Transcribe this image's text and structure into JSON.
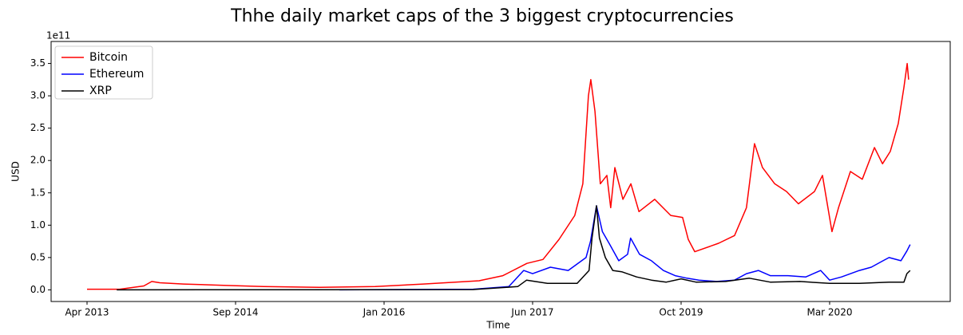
{
  "chart_data": {
    "type": "line",
    "title": "Thhe daily market caps of the 3 biggest cryptocurrencies",
    "x_label": "Time",
    "y_label": "USD",
    "y_offset_label": "1e11",
    "legend": "upper left",
    "xlim": [
      -121,
      2906
    ],
    "ylim": [
      -0.18,
      3.84
    ],
    "xticks": [
      {
        "value": 0,
        "label": "Apr 2013"
      },
      {
        "value": 500,
        "label": "Sep 2014"
      },
      {
        "value": 1000,
        "label": "Jan 2016"
      },
      {
        "value": 1500,
        "label": "Jun 2017"
      },
      {
        "value": 2000,
        "label": "Oct 2019"
      },
      {
        "value": 2500,
        "label": "Mar 2020"
      }
    ],
    "yticks": [
      {
        "value": 0,
        "label": "0.0"
      },
      {
        "value": 0.5,
        "label": "0.5"
      },
      {
        "value": 1,
        "label": "1.0"
      },
      {
        "value": 1.5,
        "label": "1.5"
      },
      {
        "value": 2,
        "label": "2.0"
      },
      {
        "value": 2.5,
        "label": "2.5"
      },
      {
        "value": 3,
        "label": "3.0"
      },
      {
        "value": 3.5,
        "label": "3.5"
      }
    ],
    "series": [
      {
        "name": "Bitcoin",
        "color": "#ff0000",
        "x": [
          0,
          110,
          191,
          218,
          245,
          325,
          460,
          594,
          782,
          970,
          1132,
          1320,
          1400,
          1481,
          1535,
          1589,
          1642,
          1669,
          1688,
          1696,
          1710,
          1728,
          1750,
          1763,
          1777,
          1804,
          1831,
          1858,
          1911,
          1965,
          2005,
          2024,
          2046,
          2126,
          2180,
          2220,
          2247,
          2274,
          2315,
          2355,
          2395,
          2449,
          2476,
          2508,
          2530,
          2570,
          2610,
          2651,
          2678,
          2704,
          2731,
          2750,
          2761,
          2766
        ],
        "values": [
          0.01,
          0.01,
          0.06,
          0.13,
          0.11,
          0.09,
          0.07,
          0.05,
          0.04,
          0.05,
          0.09,
          0.14,
          0.22,
          0.41,
          0.47,
          0.78,
          1.15,
          1.64,
          3.0,
          3.25,
          2.76,
          1.64,
          1.77,
          1.27,
          1.89,
          1.4,
          1.64,
          1.21,
          1.4,
          1.15,
          1.12,
          0.78,
          0.59,
          0.72,
          0.84,
          1.27,
          2.26,
          1.89,
          1.64,
          1.52,
          1.33,
          1.52,
          1.77,
          0.9,
          1.27,
          1.83,
          1.71,
          2.2,
          1.95,
          2.14,
          2.57,
          3.13,
          3.5,
          3.25
        ]
      },
      {
        "name": "Ethereum",
        "color": "#0000ff",
        "x": [
          850,
          1300,
          1420,
          1470,
          1500,
          1560,
          1620,
          1680,
          1695,
          1715,
          1735,
          1760,
          1790,
          1820,
          1830,
          1860,
          1900,
          1940,
          1980,
          2020,
          2060,
          2120,
          2180,
          2220,
          2260,
          2300,
          2360,
          2420,
          2470,
          2500,
          2540,
          2600,
          2640,
          2680,
          2700,
          2740,
          2760,
          2771
        ],
        "values": [
          0,
          0.01,
          0.05,
          0.3,
          0.25,
          0.35,
          0.3,
          0.5,
          0.75,
          1.3,
          0.9,
          0.7,
          0.45,
          0.55,
          0.8,
          0.55,
          0.45,
          0.3,
          0.22,
          0.18,
          0.15,
          0.13,
          0.15,
          0.25,
          0.3,
          0.22,
          0.22,
          0.2,
          0.3,
          0.15,
          0.2,
          0.3,
          0.35,
          0.45,
          0.5,
          0.45,
          0.6,
          0.7
        ]
      },
      {
        "name": "XRP",
        "color": "#000000",
        "x": [
          100,
          1300,
          1450,
          1480,
          1550,
          1650,
          1690,
          1700,
          1715,
          1725,
          1745,
          1770,
          1800,
          1850,
          1900,
          1950,
          2000,
          2050,
          2150,
          2230,
          2300,
          2400,
          2500,
          2600,
          2700,
          2750,
          2760,
          2771
        ],
        "values": [
          0,
          0.005,
          0.05,
          0.15,
          0.1,
          0.1,
          0.3,
          0.8,
          1.3,
          0.8,
          0.5,
          0.3,
          0.28,
          0.2,
          0.15,
          0.12,
          0.17,
          0.12,
          0.13,
          0.18,
          0.12,
          0.13,
          0.1,
          0.1,
          0.12,
          0.12,
          0.25,
          0.3
        ]
      }
    ]
  }
}
